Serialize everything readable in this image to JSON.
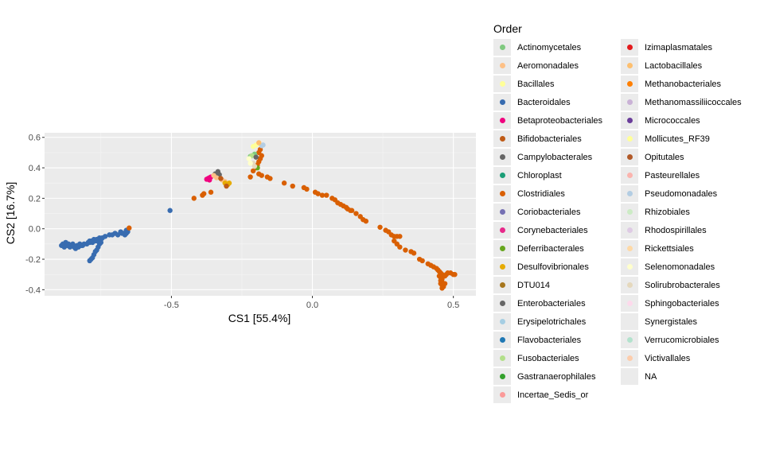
{
  "chart_data": {
    "type": "scatter",
    "xlabel": "CS1   [55.4%]",
    "ylabel": "CS2   [16.7%]",
    "xlim": [
      -0.95,
      0.58
    ],
    "ylim": [
      -0.44,
      0.63
    ],
    "x_ticks": [
      -0.5,
      0.0,
      0.5
    ],
    "x_tick_labels": [
      "-0.5",
      "0.0",
      "0.5"
    ],
    "y_ticks": [
      -0.4,
      -0.2,
      0.0,
      0.2,
      0.4,
      0.6
    ],
    "y_tick_labels": [
      "-0.4",
      "-0.2",
      "0.0",
      "0.2",
      "0.4",
      "0.6"
    ],
    "grid": true,
    "legend_position": "right",
    "legend_title": "Order",
    "legend": [
      {
        "name": "Actinomycetales",
        "color": "#7fc97f"
      },
      {
        "name": "Aeromonadales",
        "color": "#fdc086"
      },
      {
        "name": "Bacillales",
        "color": "#ffff99"
      },
      {
        "name": "Bacteroidales",
        "color": "#386cb0"
      },
      {
        "name": "Betaproteobacteriales",
        "color": "#f0027f"
      },
      {
        "name": "Bifidobacteriales",
        "color": "#bf5b17"
      },
      {
        "name": "Campylobacterales",
        "color": "#666666"
      },
      {
        "name": "Chloroplast",
        "color": "#1b9e77"
      },
      {
        "name": "Clostridiales",
        "color": "#d95f02"
      },
      {
        "name": "Coriobacteriales",
        "color": "#7570b3"
      },
      {
        "name": "Corynebacteriales",
        "color": "#e7298a"
      },
      {
        "name": "Deferribacterales",
        "color": "#66a61e"
      },
      {
        "name": "Desulfovibrionales",
        "color": "#e6ab02"
      },
      {
        "name": "DTU014",
        "color": "#a6761d"
      },
      {
        "name": "Enterobacteriales",
        "color": "#666666"
      },
      {
        "name": "Erysipelotrichales",
        "color": "#a6cee3"
      },
      {
        "name": "Flavobacteriales",
        "color": "#1f78b4"
      },
      {
        "name": "Fusobacteriales",
        "color": "#b2df8a"
      },
      {
        "name": "Gastranaerophilales",
        "color": "#33a02c"
      },
      {
        "name": "Incertae_Sedis_or",
        "color": "#fb9a99"
      },
      {
        "name": "Izimaplasmatales",
        "color": "#e31a1c"
      },
      {
        "name": "Lactobacillales",
        "color": "#fdbf6f"
      },
      {
        "name": "Methanobacteriales",
        "color": "#ff7f00"
      },
      {
        "name": "Methanomassiliicoccales",
        "color": "#cab2d6"
      },
      {
        "name": "Micrococcales",
        "color": "#6a3d9a"
      },
      {
        "name": "Mollicutes_RF39",
        "color": "#ffff99"
      },
      {
        "name": "Opitutales",
        "color": "#b15928"
      },
      {
        "name": "Pasteurellales",
        "color": "#fbb4ae"
      },
      {
        "name": "Pseudomonadales",
        "color": "#b3cde3"
      },
      {
        "name": "Rhizobiales",
        "color": "#ccebc5"
      },
      {
        "name": "Rhodospirillales",
        "color": "#decbe4"
      },
      {
        "name": "Rickettsiales",
        "color": "#fed9a6"
      },
      {
        "name": "Selenomonadales",
        "color": "#ffffcc"
      },
      {
        "name": "Solirubrobacterales",
        "color": "#e5d8bd"
      },
      {
        "name": "Sphingobacteriales",
        "color": "#fddaec"
      },
      {
        "name": "Synergistales",
        "color": "#f2f2f2"
      },
      {
        "name": "Verrucomicrobiales",
        "color": "#b3e2cd"
      },
      {
        "name": "Victivallales",
        "color": "#fdcdac"
      },
      {
        "name": "NA",
        "color": "#ebebeb"
      }
    ],
    "series": [
      {
        "name": "Bacteroidales",
        "color": "#386cb0",
        "points": [
          [
            -0.89,
            -0.11
          ],
          [
            -0.885,
            -0.1
          ],
          [
            -0.88,
            -0.12
          ],
          [
            -0.875,
            -0.09
          ],
          [
            -0.87,
            -0.11
          ],
          [
            -0.865,
            -0.1
          ],
          [
            -0.86,
            -0.12
          ],
          [
            -0.855,
            -0.11
          ],
          [
            -0.85,
            -0.1
          ],
          [
            -0.845,
            -0.12
          ],
          [
            -0.84,
            -0.13
          ],
          [
            -0.835,
            -0.11
          ],
          [
            -0.83,
            -0.12
          ],
          [
            -0.825,
            -0.1
          ],
          [
            -0.82,
            -0.11
          ],
          [
            -0.815,
            -0.11
          ],
          [
            -0.81,
            -0.1
          ],
          [
            -0.8,
            -0.1
          ],
          [
            -0.795,
            -0.09
          ],
          [
            -0.79,
            -0.09
          ],
          [
            -0.785,
            -0.08
          ],
          [
            -0.78,
            -0.08
          ],
          [
            -0.775,
            -0.07
          ],
          [
            -0.77,
            -0.08
          ],
          [
            -0.765,
            -0.07
          ],
          [
            -0.76,
            -0.07
          ],
          [
            -0.755,
            -0.06
          ],
          [
            -0.75,
            -0.07
          ],
          [
            -0.745,
            -0.06
          ],
          [
            -0.735,
            -0.05
          ],
          [
            -0.72,
            -0.04
          ],
          [
            -0.71,
            -0.04
          ],
          [
            -0.7,
            -0.03
          ],
          [
            -0.69,
            -0.04
          ],
          [
            -0.68,
            -0.02
          ],
          [
            -0.675,
            -0.03
          ],
          [
            -0.665,
            -0.04
          ],
          [
            -0.66,
            -0.03
          ],
          [
            -0.655,
            -0.02
          ],
          [
            -0.66,
            -0.01
          ],
          [
            -0.67,
            -0.03
          ],
          [
            -0.79,
            -0.21
          ],
          [
            -0.785,
            -0.2
          ],
          [
            -0.78,
            -0.19
          ],
          [
            -0.775,
            -0.17
          ],
          [
            -0.77,
            -0.15
          ],
          [
            -0.765,
            -0.14
          ],
          [
            -0.76,
            -0.12
          ],
          [
            -0.755,
            -0.1
          ],
          [
            -0.75,
            -0.09
          ],
          [
            -0.765,
            -0.08
          ],
          [
            -0.78,
            -0.09
          ],
          [
            -0.79,
            -0.08
          ],
          [
            -0.505,
            0.12
          ]
        ]
      },
      {
        "name": "Clostridiales",
        "color": "#d95f02",
        "points": [
          [
            -0.65,
            0.005
          ],
          [
            -0.42,
            0.2
          ],
          [
            -0.39,
            0.22
          ],
          [
            -0.385,
            0.23
          ],
          [
            -0.36,
            0.24
          ],
          [
            -0.22,
            0.34
          ],
          [
            -0.21,
            0.38
          ],
          [
            -0.2,
            0.4
          ],
          [
            -0.195,
            0.42
          ],
          [
            -0.19,
            0.44
          ],
          [
            -0.185,
            0.46
          ],
          [
            -0.19,
            0.5
          ],
          [
            -0.185,
            0.52
          ],
          [
            -0.18,
            0.48
          ],
          [
            -0.19,
            0.36
          ],
          [
            -0.18,
            0.35
          ],
          [
            -0.16,
            0.34
          ],
          [
            -0.15,
            0.33
          ],
          [
            -0.1,
            0.3
          ],
          [
            -0.07,
            0.28
          ],
          [
            -0.03,
            0.27
          ],
          [
            -0.02,
            0.26
          ],
          [
            0.01,
            0.24
          ],
          [
            0.02,
            0.23
          ],
          [
            0.035,
            0.22
          ],
          [
            0.05,
            0.22
          ],
          [
            0.07,
            0.2
          ],
          [
            0.08,
            0.19
          ],
          [
            0.09,
            0.17
          ],
          [
            0.1,
            0.16
          ],
          [
            0.11,
            0.15
          ],
          [
            0.12,
            0.14
          ],
          [
            0.125,
            0.13
          ],
          [
            0.135,
            0.12
          ],
          [
            0.14,
            0.12
          ],
          [
            0.155,
            0.1
          ],
          [
            0.17,
            0.08
          ],
          [
            0.18,
            0.06
          ],
          [
            0.19,
            0.05
          ],
          [
            0.24,
            0.01
          ],
          [
            0.26,
            -0.01
          ],
          [
            0.27,
            -0.02
          ],
          [
            0.28,
            -0.04
          ],
          [
            0.29,
            -0.05
          ],
          [
            0.3,
            -0.05
          ],
          [
            0.31,
            -0.05
          ],
          [
            0.29,
            -0.08
          ],
          [
            0.3,
            -0.1
          ],
          [
            0.31,
            -0.12
          ],
          [
            0.33,
            -0.14
          ],
          [
            0.35,
            -0.15
          ],
          [
            0.36,
            -0.16
          ],
          [
            0.38,
            -0.2
          ],
          [
            0.39,
            -0.21
          ],
          [
            0.41,
            -0.23
          ],
          [
            0.42,
            -0.24
          ],
          [
            0.43,
            -0.25
          ],
          [
            0.44,
            -0.26
          ],
          [
            0.445,
            -0.27
          ],
          [
            0.45,
            -0.28
          ],
          [
            0.455,
            -0.29
          ],
          [
            0.46,
            -0.3
          ],
          [
            0.45,
            -0.31
          ],
          [
            0.455,
            -0.32
          ],
          [
            0.46,
            -0.33
          ],
          [
            0.455,
            -0.34
          ],
          [
            0.46,
            -0.35
          ],
          [
            0.455,
            -0.36
          ],
          [
            0.46,
            -0.37
          ],
          [
            0.465,
            -0.38
          ],
          [
            0.47,
            -0.36
          ],
          [
            0.475,
            -0.3
          ],
          [
            0.48,
            -0.29
          ],
          [
            0.49,
            -0.29
          ],
          [
            0.5,
            -0.3
          ],
          [
            0.505,
            -0.3
          ],
          [
            0.47,
            -0.31
          ],
          [
            0.46,
            -0.39
          ]
        ]
      },
      {
        "name": "Betaproteobacteriales",
        "color": "#f0027f",
        "points": [
          [
            -0.375,
            0.325
          ],
          [
            -0.37,
            0.33
          ],
          [
            -0.365,
            0.335
          ],
          [
            -0.36,
            0.34
          ],
          [
            -0.365,
            0.32
          ],
          [
            -0.37,
            0.325
          ]
        ]
      },
      {
        "name": "Campylobacterales",
        "color": "#666666",
        "points": [
          [
            -0.335,
            0.375
          ],
          [
            -0.33,
            0.355
          ],
          [
            -0.345,
            0.36
          ]
        ]
      },
      {
        "name": "Aeromonadales",
        "color": "#fdc086",
        "points": [
          [
            -0.35,
            0.35
          ],
          [
            -0.34,
            0.335
          ],
          [
            -0.32,
            0.32
          ],
          [
            -0.31,
            0.31
          ]
        ]
      },
      {
        "name": "Desulfovibrionales",
        "color": "#e6ab02",
        "points": [
          [
            -0.3,
            0.29
          ],
          [
            -0.295,
            0.3
          ],
          [
            -0.31,
            0.3
          ]
        ]
      },
      {
        "name": "Bifidobacteriales",
        "color": "#bf5b17",
        "points": [
          [
            -0.325,
            0.33
          ],
          [
            -0.305,
            0.28
          ]
        ]
      },
      {
        "name": "Bacillales",
        "color": "#ffff99",
        "points": [
          [
            -0.21,
            0.54
          ],
          [
            -0.2,
            0.55
          ],
          [
            -0.19,
            0.56
          ]
        ]
      },
      {
        "name": "Pseudomonadales",
        "color": "#b3cde3",
        "points": [
          [
            -0.18,
            0.545
          ],
          [
            -0.175,
            0.55
          ]
        ]
      },
      {
        "name": "Lactobacillales",
        "color": "#fdbf6f",
        "points": [
          [
            -0.19,
            0.565
          ]
        ]
      },
      {
        "name": "Actinomycetales",
        "color": "#7fc97f",
        "points": [
          [
            -0.22,
            0.475
          ],
          [
            -0.205,
            0.49
          ]
        ]
      },
      {
        "name": "Fusobacteriales",
        "color": "#b2df8a",
        "points": [
          [
            -0.215,
            0.48
          ]
        ]
      },
      {
        "name": "Enterobacteriales",
        "color": "#666666",
        "points": [
          [
            -0.2,
            0.47
          ]
        ]
      },
      {
        "name": "Deferribacterales",
        "color": "#66a61e",
        "points": [
          [
            -0.195,
            0.4
          ]
        ]
      },
      {
        "name": "Solirubrobacterales",
        "color": "#e5d8bd",
        "points": [
          [
            -0.21,
            0.43
          ],
          [
            -0.205,
            0.41
          ]
        ]
      },
      {
        "name": "Selenomonadales",
        "color": "#ffffcc",
        "points": [
          [
            -0.22,
            0.43
          ],
          [
            -0.225,
            0.46
          ]
        ]
      }
    ]
  }
}
